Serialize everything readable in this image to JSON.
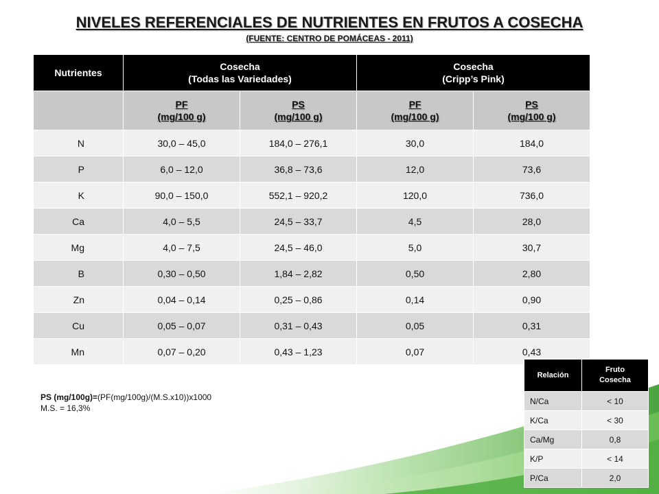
{
  "title": "NIVELES REFERENCIALES DE NUTRIENTES EN FRUTOS A COSECHA",
  "subtitle": "(FUENTE: CENTRO DE POMÁCEAS - 2011)",
  "main_table": {
    "header": {
      "nutrientes": "Nutrientes",
      "group1_line1": "Cosecha",
      "group1_line2": "(Todas las Variedades)",
      "group2_line1": "Cosecha",
      "group2_line2": "(Cripp’s Pink)"
    },
    "subheader": [
      {
        "line1": "PF",
        "line2": "(mg/100 g)"
      },
      {
        "line1": "PS",
        "line2": "(mg/100 g)"
      },
      {
        "line1": "PF",
        "line2": "(mg/100 g)"
      },
      {
        "line1": "PS",
        "line2": "(mg/100 g)"
      }
    ],
    "rows": [
      [
        "N",
        "30,0 – 45,0",
        "184,0 – 276,1",
        "30,0",
        "184,0"
      ],
      [
        "P",
        "6,0 – 12,0",
        "36,8 – 73,6",
        "12,0",
        "73,6"
      ],
      [
        "K",
        "90,0 – 150,0",
        "552,1 – 920,2",
        "120,0",
        "736,0"
      ],
      [
        "Ca",
        "4,0 – 5,5",
        "24,5 – 33,7",
        "4,5",
        "28,0"
      ],
      [
        "Mg",
        "4,0 – 7,5",
        "24,5 – 46,0",
        "5,0",
        "30,7"
      ],
      [
        "B",
        "0,30 – 0,50",
        "1,84 – 2,82",
        "0,50",
        "2,80"
      ],
      [
        "Zn",
        "0,04 – 0,14",
        "0,25 – 0,86",
        "0,14",
        "0,90"
      ],
      [
        "Cu",
        "0,05 – 0,07",
        "0,31 – 0,43",
        "0,05",
        "0,31"
      ],
      [
        "Mn",
        "0,07 – 0,20",
        "0,43 – 1,23",
        "0,07",
        "0,43"
      ]
    ]
  },
  "formula": {
    "bold": "PS (mg/100g)=",
    "rest": "(PF(mg/100g)/(M.S.x10))x1000",
    "ms": "M.S. = 16,3%"
  },
  "relation_table": {
    "header": {
      "relacion": "Relación",
      "fruto_line1": "Fruto",
      "fruto_line2": "Cosecha"
    },
    "rows": [
      [
        "N/Ca",
        "< 10"
      ],
      [
        "K/Ca",
        "< 30"
      ],
      [
        "Ca/Mg",
        "0,8"
      ],
      [
        "K/P",
        "< 14"
      ],
      [
        "P/Ca",
        "2,0"
      ]
    ]
  },
  "colors": {
    "header_bg": "#000000",
    "subheader_bg": "#c8c8c8",
    "row_light": "#f0f0f0",
    "row_dark": "#d9d9d9",
    "accent_green": "#5cb84a"
  }
}
